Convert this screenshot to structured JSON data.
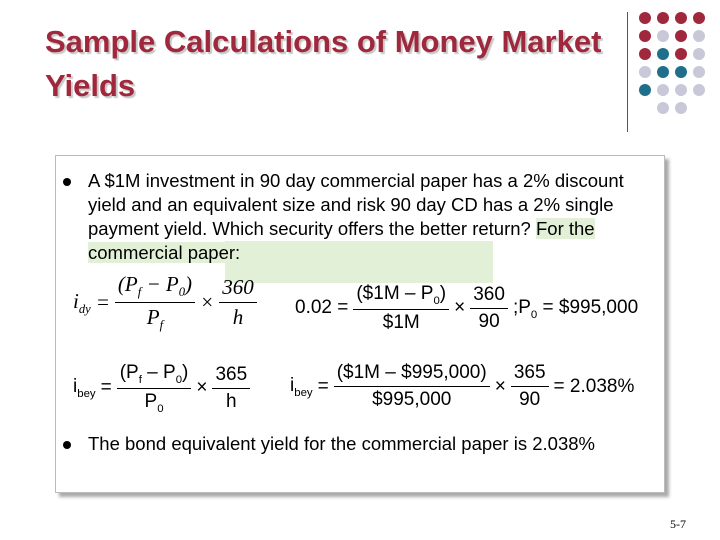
{
  "title": "Sample Calculations of Money Market Yields",
  "bullets": [
    {
      "text": "A $1M investment in 90 day commercial paper has a 2% discount yield and an equivalent size and risk 90 day CD has a 2% single payment yield.  Which security offers the better return?",
      "highlight": "For the commercial paper:"
    },
    {
      "text": "The bond equivalent yield for the commercial paper is 2.038%"
    }
  ],
  "formulas": [
    [
      {
        "text": [
          "i",
          "dy"
        ]
      },
      {
        "text": [
          "="
        ]
      },
      {
        "num": [
          "(P",
          "f",
          " − P",
          "0",
          ")"
        ],
        "den": [
          "P",
          "f"
        ]
      },
      {
        "text": [
          "×"
        ]
      },
      {
        "num": [
          "360"
        ],
        "den": [
          "h"
        ]
      }
    ],
    [
      {
        "text": [
          "0.02 ="
        ]
      },
      {
        "num": [
          "($1M – P",
          "0",
          ")"
        ],
        "den": [
          "$1M"
        ]
      },
      {
        "text": [
          "×"
        ]
      },
      {
        "num": [
          "360"
        ],
        "den": [
          "90"
        ]
      },
      {
        "text": [
          ";P",
          "0",
          " = $995,000"
        ]
      }
    ],
    [
      {
        "text": [
          "i",
          "bey"
        ]
      },
      {
        "text": [
          "="
        ]
      },
      {
        "num": [
          "(P",
          "f",
          " – P",
          "0",
          ")"
        ],
        "den": [
          "P",
          "0"
        ]
      },
      {
        "text": [
          "×"
        ]
      },
      {
        "num": [
          "365"
        ],
        "den": [
          "h"
        ]
      }
    ],
    [
      {
        "text": [
          "i",
          "bey"
        ]
      },
      {
        "text": [
          "="
        ]
      },
      {
        "num": [
          "($1M – $995,000)"
        ],
        "den": [
          "$995,000"
        ]
      },
      {
        "text": [
          "×"
        ]
      },
      {
        "num": [
          "365"
        ],
        "den": [
          "90"
        ]
      },
      {
        "text": [
          "= 2.038%"
        ]
      }
    ]
  ],
  "slide_number": "5-7"
}
